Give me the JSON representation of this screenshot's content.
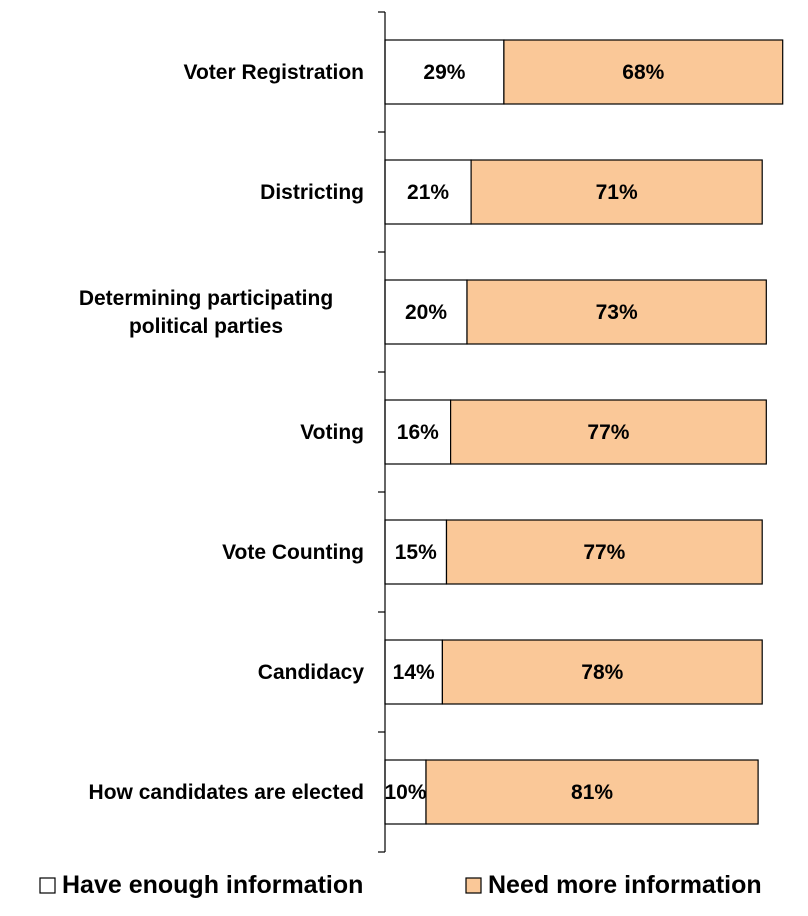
{
  "chart_data": {
    "type": "bar",
    "orientation": "horizontal",
    "stacked": true,
    "title": "",
    "xlabel": "",
    "ylabel": "",
    "categories": [
      [
        "Voter Registration"
      ],
      [
        "Districting"
      ],
      [
        "Determining participating",
        "political parties"
      ],
      [
        "Voting"
      ],
      [
        "Vote Counting"
      ],
      [
        "Candidacy"
      ],
      [
        "How candidates are elected"
      ]
    ],
    "series": [
      {
        "name": "Have enough information",
        "color": "#ffffff",
        "values": [
          29,
          21,
          20,
          16,
          15,
          14,
          10
        ],
        "labels": [
          "29%",
          "21%",
          "20%",
          "16%",
          "15%",
          "14%",
          "10%"
        ]
      },
      {
        "name": "Need more information",
        "color": "#fac898",
        "values": [
          68,
          71,
          73,
          77,
          77,
          78,
          81
        ],
        "labels": [
          "68%",
          "71%",
          "73%",
          "77%",
          "77%",
          "78%",
          "81%"
        ]
      }
    ],
    "xlim": [
      0,
      100
    ],
    "grid": false,
    "legend_position": "bottom",
    "bar_outline_color": "#000000"
  }
}
